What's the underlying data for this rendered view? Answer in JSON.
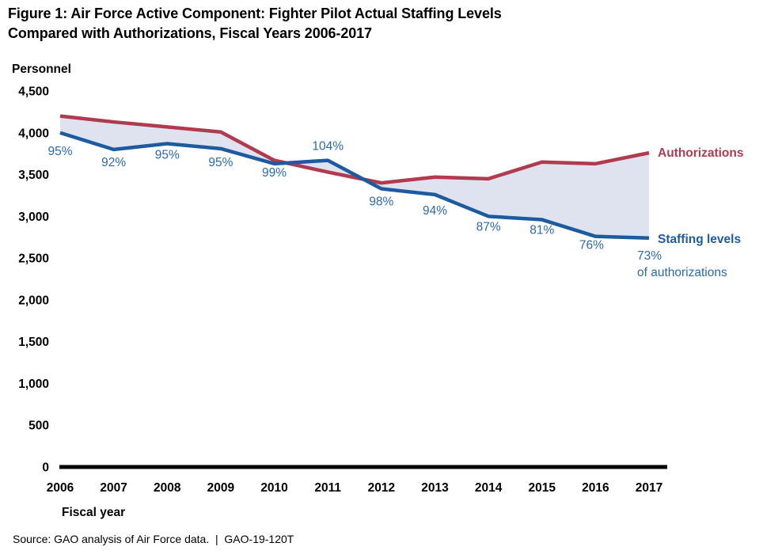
{
  "title": "Figure 1: Air Force Active Component: Fighter Pilot Actual Staffing Levels\nCompared with Authorizations, Fiscal Years 2006-2017",
  "source_note": "Source: GAO analysis of Air Force data.  |  GAO-19-120T",
  "colors": {
    "authorizations_line": "#b23a4e",
    "staffing_line": "#1e5b9e",
    "pct_text": "#2b69ae",
    "area_fill": "#dfe2ef",
    "axis": "#000000"
  },
  "chart_data": {
    "type": "line",
    "title": "Figure 1: Air Force Active Component: Fighter Pilot Actual Staffing Levels Compared with Authorizations, Fiscal Years 2006-2017",
    "xlabel": "Fiscal year",
    "ylabel": "Personnel",
    "x": [
      "2006",
      "2007",
      "2008",
      "2009",
      "2010",
      "2011",
      "2012",
      "2013",
      "2014",
      "2015",
      "2016",
      "2017"
    ],
    "ylim": [
      0,
      4500
    ],
    "y_tick_labels": [
      "0",
      "500",
      "1,000",
      "1,500",
      "2,000",
      "2,500",
      "3,000",
      "3,500",
      "4,000",
      "4,500"
    ],
    "grid": false,
    "legend_position": "right of line ends",
    "area_between_series": true,
    "series": [
      {
        "name": "Authorizations",
        "color_key": "authorizations_line",
        "values": [
          4200,
          4130,
          4070,
          4010,
          3670,
          3530,
          3400,
          3470,
          3450,
          3650,
          3630,
          3760
        ]
      },
      {
        "name": "Staffing levels",
        "color_key": "staffing_line",
        "values": [
          4000,
          3800,
          3870,
          3810,
          3630,
          3670,
          3330,
          3260,
          3000,
          2960,
          2760,
          2740
        ]
      }
    ],
    "staffing_pct_of_authorizations": [
      "95%",
      "92%",
      "95%",
      "95%",
      "99%",
      "104%",
      "98%",
      "94%",
      "87%",
      "81%",
      "76%",
      "73%"
    ],
    "annotation_2017": {
      "line1": "73%",
      "line2": "of authorizations"
    }
  }
}
